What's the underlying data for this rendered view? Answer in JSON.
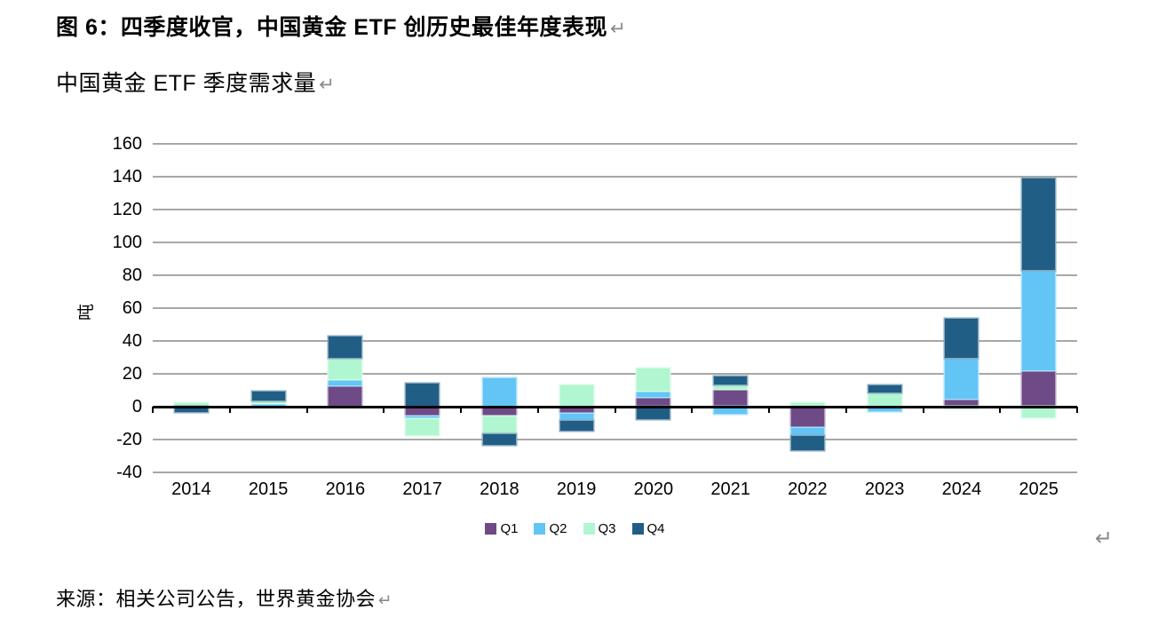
{
  "page": {
    "title": "图 6：四季度收官，中国黄金 ETF 创历史最佳年度表现",
    "subtitle": "中国黄金 ETF 季度需求量",
    "source": "来源：相关公司公告，世界黄金协会",
    "return_mark": "↵"
  },
  "chart_data": {
    "type": "bar",
    "stacked": true,
    "title": "中国黄金 ETF 季度需求量",
    "ylabel": "吨",
    "categories": [
      "2014",
      "2015",
      "2016",
      "2017",
      "2018",
      "2019",
      "2020",
      "2021",
      "2022",
      "2023",
      "2024",
      "2025"
    ],
    "series": [
      {
        "name": "Q1",
        "color": "#6E4A87",
        "values": [
          0,
          0,
          13,
          -6,
          -6,
          -4.5,
          6,
          11,
          -13,
          0,
          5,
          22
        ]
      },
      {
        "name": "Q2",
        "color": "#62C5F5",
        "values": [
          0,
          2,
          4,
          -1.5,
          17.5,
          -4,
          3.5,
          -4.5,
          -5,
          -2.5,
          24.5,
          61
        ]
      },
      {
        "name": "Q3",
        "color": "#B0F6D1",
        "values": [
          2,
          2,
          12.5,
          -10,
          -11,
          13,
          14,
          2.5,
          2,
          8.5,
          -1,
          -6.5
        ]
      },
      {
        "name": "Q4",
        "color": "#215E86",
        "values": [
          -3,
          5,
          13,
          14,
          -6.5,
          -6,
          -7.5,
          5,
          -8.5,
          4.5,
          24,
          56
        ]
      }
    ],
    "ylim": [
      -40,
      160
    ],
    "yticks": [
      160,
      140,
      120,
      100,
      80,
      60,
      40,
      20,
      0,
      -20,
      -40
    ],
    "grid": "horizontal",
    "legend_position": "bottom",
    "gridline_color": "#a7a7a7",
    "axis_color": "#000000"
  }
}
